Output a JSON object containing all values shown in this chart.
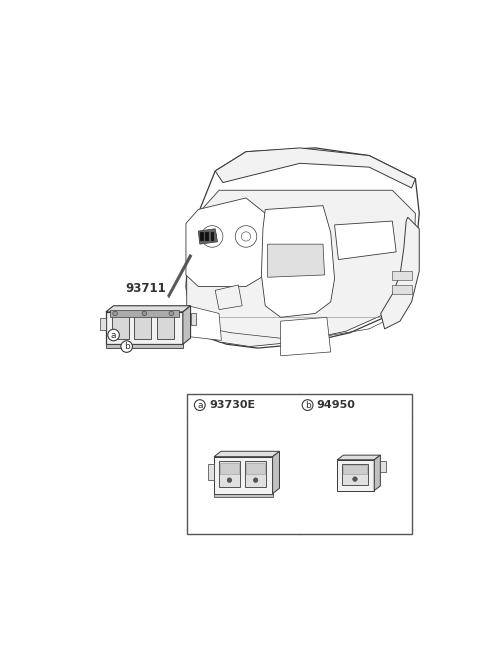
{
  "bg_color": "#ffffff",
  "fig_width": 4.8,
  "fig_height": 6.55,
  "dpi": 100,
  "part_number_label": "93711",
  "circle_a_label": "a",
  "circle_b_label": "b",
  "table_header_a": "a",
  "table_part_a": "93730E",
  "table_header_b": "b",
  "table_part_b": "94950",
  "line_color": "#3a3a3a",
  "fill_white": "#ffffff",
  "fill_light": "#f2f2f2",
  "fill_mid": "#e0e0e0",
  "fill_dark": "#c0c0c0",
  "fill_darker": "#aaaaaa",
  "table_border_color": "#555555"
}
